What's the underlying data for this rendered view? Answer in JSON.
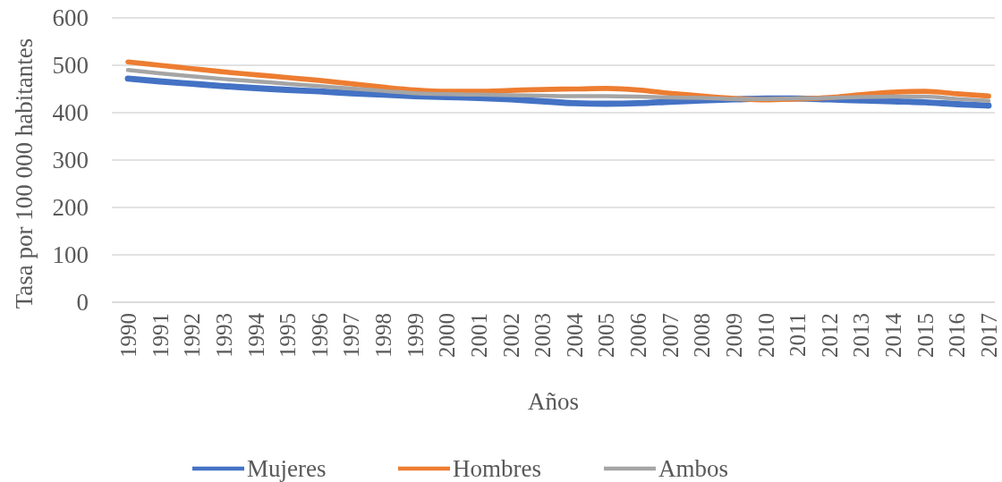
{
  "chart_data": {
    "type": "line",
    "xlabel": "Años",
    "ylabel": "Tasa por 100 000 habitantes",
    "categories": [
      "1990",
      "1991",
      "1992",
      "1993",
      "1994",
      "1995",
      "1996",
      "1997",
      "1998",
      "1999",
      "2000",
      "2001",
      "2002",
      "2003",
      "2004",
      "2005",
      "2006",
      "2007",
      "2008",
      "2009",
      "2010",
      "2011",
      "2012",
      "2013",
      "2014",
      "2015",
      "2016",
      "2017"
    ],
    "ylim": [
      0,
      600
    ],
    "yticks": [
      0,
      100,
      200,
      300,
      400,
      500,
      600
    ],
    "grid": "y",
    "legend": "bottom",
    "marker": "none",
    "line_style": "solid",
    "series": [
      {
        "name": "Mujeres",
        "color": "#4472c4",
        "values": [
          472,
          466,
          461,
          456,
          452,
          448,
          445,
          441,
          438,
          435,
          433,
          431,
          428,
          424,
          420,
          419,
          420,
          423,
          426,
          428,
          430,
          430,
          428,
          426,
          424,
          422,
          418,
          415
        ]
      },
      {
        "name": "Hombres",
        "color": "#ed7d31",
        "values": [
          507,
          500,
          493,
          486,
          480,
          474,
          468,
          461,
          454,
          448,
          445,
          445,
          447,
          449,
          450,
          451,
          448,
          441,
          435,
          430,
          427,
          429,
          432,
          438,
          443,
          445,
          440,
          435
        ]
      },
      {
        "name": "Ambos",
        "color": "#a5a5a5",
        "values": [
          490,
          483,
          477,
          471,
          466,
          461,
          456,
          451,
          446,
          441,
          439,
          438,
          437,
          436,
          435,
          435,
          434,
          432,
          431,
          429,
          429,
          430,
          431,
          433,
          434,
          434,
          429,
          425
        ]
      }
    ]
  }
}
